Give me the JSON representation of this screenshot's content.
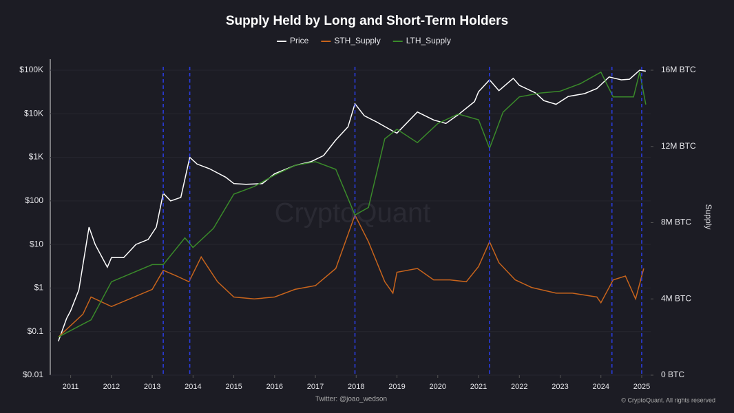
{
  "chart_data": {
    "type": "line",
    "title": "Supply Held by Long and Short-Term Holders",
    "y2label": "Supply",
    "watermark": "CryptoQuant",
    "source": "Twitter: @joao_wedson",
    "copyright": "© CryptoQuant. All rights reserved",
    "log_scale": true,
    "grid": true,
    "legend": "top",
    "xlim": [
      2010.5,
      2025.22
    ],
    "xticks": [
      2011,
      2012,
      2013,
      2014,
      2015,
      2016,
      2017,
      2018,
      2019,
      2020,
      2021,
      2022,
      2023,
      2024,
      2025
    ],
    "ylim": [
      0.01,
      100000
    ],
    "yticks": [
      {
        "value": 0.01,
        "label": "$0.01"
      },
      {
        "value": 0.1,
        "label": "$0.1"
      },
      {
        "value": 1,
        "label": "$1"
      },
      {
        "value": 10,
        "label": "$10"
      },
      {
        "value": 100,
        "label": "$100"
      },
      {
        "value": 1000,
        "label": "$1K"
      },
      {
        "value": 10000,
        "label": "$10K"
      },
      {
        "value": 100000,
        "label": "$100K"
      }
    ],
    "y2lim": [
      0,
      16000000
    ],
    "y2ticks": [
      {
        "value": 0,
        "label": "0 BTC"
      },
      {
        "value": 4000000,
        "label": "4M BTC"
      },
      {
        "value": 8000000,
        "label": "8M BTC"
      },
      {
        "value": 12000000,
        "label": "12M BTC"
      },
      {
        "value": 16000000,
        "label": "16M BTC"
      }
    ],
    "vlines": [
      2013.27,
      2013.92,
      2017.97,
      2021.27,
      2024.27,
      2025.0
    ],
    "vline_color": "#2a3ce0",
    "series": [
      {
        "name": "Price",
        "color": "#ffffff",
        "x": [
          2010.7,
          2010.9,
          2011.0,
          2011.2,
          2011.45,
          2011.6,
          2011.9,
          2012.0,
          2012.3,
          2012.6,
          2012.9,
          2013.1,
          2013.27,
          2013.45,
          2013.7,
          2013.92,
          2014.1,
          2014.4,
          2014.8,
          2015.0,
          2015.3,
          2015.7,
          2016.0,
          2016.5,
          2016.9,
          2017.2,
          2017.5,
          2017.8,
          2017.97,
          2018.2,
          2018.5,
          2018.9,
          2019.0,
          2019.5,
          2019.9,
          2020.2,
          2020.5,
          2020.9,
          2021.0,
          2021.27,
          2021.5,
          2021.85,
          2022.0,
          2022.4,
          2022.6,
          2022.9,
          2023.2,
          2023.6,
          2023.9,
          2024.2,
          2024.5,
          2024.7,
          2024.95,
          2025.1
        ],
        "values": [
          0.06,
          0.2,
          0.3,
          0.9,
          25,
          10,
          3,
          5,
          5,
          10,
          13,
          25,
          150,
          100,
          120,
          1000,
          700,
          550,
          350,
          250,
          240,
          250,
          420,
          650,
          800,
          1100,
          2500,
          5000,
          17000,
          9000,
          6500,
          4000,
          3600,
          11000,
          7200,
          6000,
          9500,
          19000,
          32000,
          60000,
          34000,
          65000,
          45000,
          30000,
          20000,
          16500,
          25000,
          29000,
          38000,
          70000,
          60000,
          62000,
          100000,
          95000
        ]
      },
      {
        "name": "STH_Supply",
        "color": "#c8641c",
        "axis": "y2",
        "x": [
          2010.7,
          2011.3,
          2011.5,
          2012.0,
          2013.0,
          2013.27,
          2013.6,
          2013.9,
          2014.2,
          2014.6,
          2015.0,
          2015.5,
          2016.0,
          2016.5,
          2017.0,
          2017.5,
          2017.97,
          2018.3,
          2018.7,
          2018.9,
          2019.0,
          2019.5,
          2019.9,
          2020.3,
          2020.7,
          2021.0,
          2021.27,
          2021.5,
          2021.9,
          2022.3,
          2022.9,
          2023.3,
          2023.9,
          2024.0,
          2024.3,
          2024.6,
          2024.85,
          2025.05
        ],
        "values": [
          2000000,
          3200000,
          4100000,
          3600000,
          4500000,
          5500000,
          5200000,
          4900000,
          6200000,
          4900000,
          4100000,
          4000000,
          4100000,
          4500000,
          4700000,
          5600000,
          8400000,
          7000000,
          4900000,
          4300000,
          5400000,
          5600000,
          5000000,
          5000000,
          4900000,
          5700000,
          7000000,
          5900000,
          5000000,
          4600000,
          4300000,
          4300000,
          4100000,
          3800000,
          5000000,
          5200000,
          4000000,
          5600000
        ]
      },
      {
        "name": "LTH_Supply",
        "color": "#3a8a2a",
        "axis": "y2",
        "x": [
          2010.7,
          2011.5,
          2012.0,
          2013.0,
          2013.27,
          2013.8,
          2014.0,
          2014.5,
          2015.0,
          2015.5,
          2016.0,
          2016.5,
          2017.0,
          2017.5,
          2017.97,
          2018.3,
          2018.7,
          2019.0,
          2019.5,
          2020.0,
          2020.5,
          2021.0,
          2021.27,
          2021.6,
          2022.0,
          2022.5,
          2023.0,
          2023.5,
          2024.0,
          2024.3,
          2024.8,
          2024.95,
          2025.1
        ],
        "values": [
          2000000,
          2900000,
          4900000,
          5800000,
          5800000,
          7200000,
          6700000,
          7700000,
          9500000,
          9900000,
          10500000,
          11000000,
          11200000,
          10800000,
          8400000,
          8800000,
          12400000,
          12900000,
          12200000,
          13200000,
          13700000,
          13400000,
          11900000,
          13800000,
          14600000,
          14800000,
          14900000,
          15300000,
          15900000,
          14600000,
          14600000,
          15900000,
          14200000
        ]
      }
    ]
  }
}
